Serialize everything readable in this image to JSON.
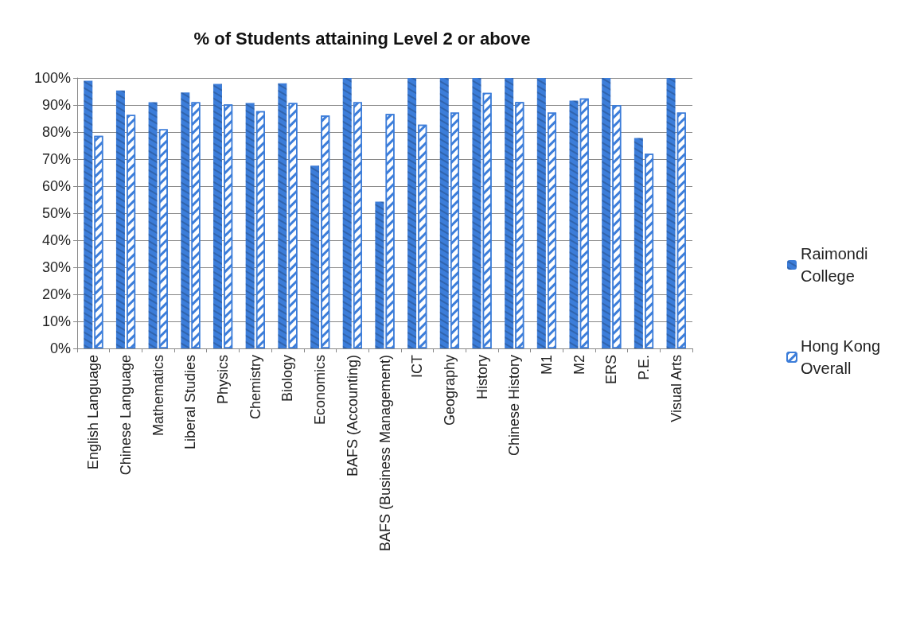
{
  "chart_data": {
    "type": "bar",
    "title": "% of Students attaining Level 2 or above",
    "categories": [
      "English Language",
      "Chinese Language",
      "Mathematics",
      "Liberal Studies",
      "Physics",
      "Chemistry",
      "Biology",
      "Economics",
      "BAFS (Accounting)",
      "BAFS (Business Management)",
      "ICT",
      "Geography",
      "History",
      "Chinese History",
      "M1",
      "M2",
      "ERS",
      "P.E.",
      "Visual Arts"
    ],
    "series": [
      {
        "name": "Raimondi College",
        "color": "#3c7dd9",
        "values": [
          99,
          95.4,
          91,
          94.6,
          97.8,
          90.7,
          98,
          67.6,
          100,
          54.3,
          100,
          100,
          100,
          100,
          100,
          91.6,
          100,
          77.8,
          100
        ]
      },
      {
        "name": "Hong Kong Overall",
        "color": "#3c7dd9",
        "values": [
          78.6,
          86.3,
          81,
          91,
          90.2,
          87.7,
          90.7,
          86.1,
          91,
          86.7,
          82.7,
          87.2,
          94.5,
          91.1,
          87.2,
          92.4,
          89.9,
          72,
          87.2
        ]
      }
    ],
    "ylim": [
      0,
      100
    ],
    "yticks": [
      {
        "value": 0,
        "label": "0%"
      },
      {
        "value": 10,
        "label": "10%"
      },
      {
        "value": 20,
        "label": "20%"
      },
      {
        "value": 30,
        "label": "30%"
      },
      {
        "value": 40,
        "label": "40%"
      },
      {
        "value": 50,
        "label": "50%"
      },
      {
        "value": 60,
        "label": "60%"
      },
      {
        "value": 70,
        "label": "70%"
      },
      {
        "value": 80,
        "label": "80%"
      },
      {
        "value": 90,
        "label": "90%"
      },
      {
        "value": 100,
        "label": "100%"
      }
    ],
    "grid": "y",
    "legend": "right"
  }
}
